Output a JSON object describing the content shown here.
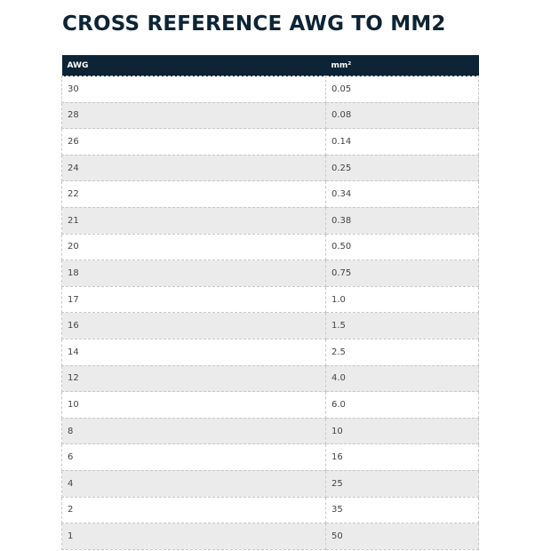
{
  "title": "CROSS REFERENCE AWG TO MM2",
  "table": {
    "header": [
      "AWG",
      "mm²"
    ],
    "rows": [
      [
        "30",
        "0.05"
      ],
      [
        "28",
        "0.08"
      ],
      [
        "26",
        "0.14"
      ],
      [
        "24",
        "0.25"
      ],
      [
        "22",
        "0.34"
      ],
      [
        "21",
        "0.38"
      ],
      [
        "20",
        "0.50"
      ],
      [
        "18",
        "0.75"
      ],
      [
        "17",
        "1.0"
      ],
      [
        "16",
        "1.5"
      ],
      [
        "14",
        "2.5"
      ],
      [
        "12",
        "4.0"
      ],
      [
        "10",
        "6.0"
      ],
      [
        "8",
        "10"
      ],
      [
        "6",
        "16"
      ],
      [
        "4",
        "25"
      ],
      [
        "2",
        "35"
      ],
      [
        "1",
        "50"
      ]
    ]
  }
}
